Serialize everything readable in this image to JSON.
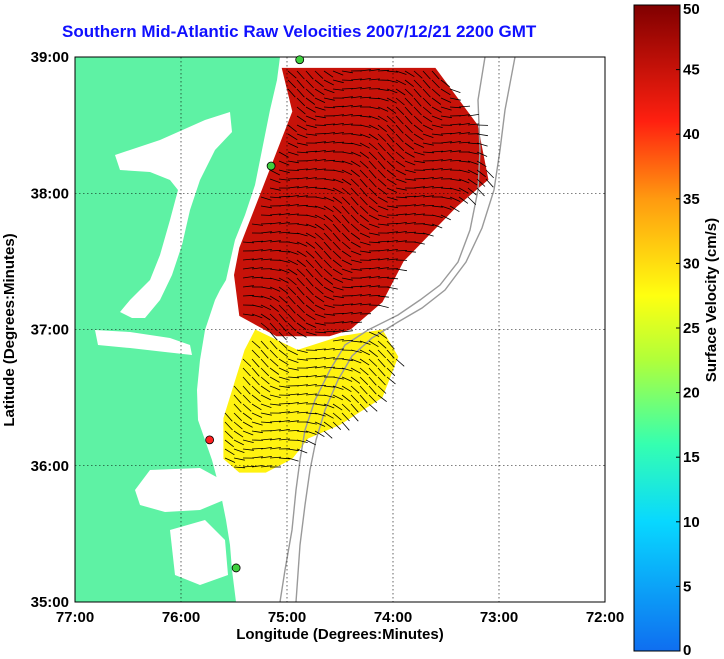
{
  "title": "Southern Mid-Atlantic Raw Velocities 2007/12/21 2200 GMT",
  "xlabel": "Longitude (Degrees:Minutes)",
  "ylabel": "Latitude (Degrees:Minutes)",
  "colorbar_label": "Surface Velocity (cm/s)",
  "x_ticks": [
    {
      "value": -77,
      "label": "77:00"
    },
    {
      "value": -76,
      "label": "76:00"
    },
    {
      "value": -75,
      "label": "75:00"
    },
    {
      "value": -74,
      "label": "74:00"
    },
    {
      "value": -73,
      "label": "73:00"
    },
    {
      "value": -72,
      "label": "72:00"
    }
  ],
  "y_ticks": [
    {
      "value": 35,
      "label": "35:00"
    },
    {
      "value": 36,
      "label": "36:00"
    },
    {
      "value": 37,
      "label": "37:00"
    },
    {
      "value": 38,
      "label": "38:00"
    },
    {
      "value": 39,
      "label": "39:00"
    }
  ],
  "colorbar_ticks": [
    {
      "value": 0,
      "label": "0"
    },
    {
      "value": 5,
      "label": "5"
    },
    {
      "value": 10,
      "label": "10"
    },
    {
      "value": 15,
      "label": "15"
    },
    {
      "value": 20,
      "label": "20"
    },
    {
      "value": 25,
      "label": "25"
    },
    {
      "value": 30,
      "label": "30"
    },
    {
      "value": 35,
      "label": "35"
    },
    {
      "value": 40,
      "label": "40"
    },
    {
      "value": 45,
      "label": "45"
    },
    {
      "value": 50,
      "label": "50"
    }
  ],
  "extent": {
    "lon": [
      -77,
      -72
    ],
    "lat": [
      35,
      39
    ]
  },
  "colorbar_range": [
    0,
    50
  ],
  "colors": {
    "land": "#5ef2a4",
    "ocean": "#ffffff",
    "title": "#1010ff",
    "bathymetry": "#9a9a9a",
    "arrows": "#000000",
    "grid": "#000000"
  },
  "stations": [
    {
      "lon": -74.88,
      "lat": 38.98,
      "color": "#3ecf3e"
    },
    {
      "lon": -75.15,
      "lat": 38.2,
      "color": "#3ecf3e"
    },
    {
      "lon": -75.73,
      "lat": 36.19,
      "color": "#ff2020"
    },
    {
      "lon": -75.48,
      "lat": 35.25,
      "color": "#3ecf3e"
    }
  ],
  "coverage_regions": [
    {
      "name": "northern",
      "speed": 45,
      "polygon": [
        [
          -75.05,
          38.92
        ],
        [
          -73.6,
          38.92
        ],
        [
          -73.2,
          38.5
        ],
        [
          -73.1,
          38.1
        ],
        [
          -73.4,
          37.9
        ],
        [
          -73.9,
          37.5
        ],
        [
          -74.1,
          37.2
        ],
        [
          -74.4,
          37.0
        ],
        [
          -74.6,
          36.95
        ],
        [
          -75.1,
          36.95
        ],
        [
          -75.45,
          37.1
        ],
        [
          -75.5,
          37.4
        ],
        [
          -75.45,
          37.6
        ],
        [
          -75.3,
          37.9
        ],
        [
          -75.1,
          38.3
        ],
        [
          -74.95,
          38.6
        ]
      ]
    },
    {
      "name": "southern",
      "speed": 28,
      "polygon": [
        [
          -75.3,
          37.0
        ],
        [
          -74.9,
          36.85
        ],
        [
          -74.5,
          36.95
        ],
        [
          -74.1,
          37.0
        ],
        [
          -73.95,
          36.8
        ],
        [
          -74.1,
          36.5
        ],
        [
          -74.3,
          36.4
        ],
        [
          -74.5,
          36.3
        ],
        [
          -74.8,
          36.2
        ],
        [
          -74.95,
          36.05
        ],
        [
          -75.2,
          35.95
        ],
        [
          -75.45,
          35.95
        ],
        [
          -75.6,
          36.05
        ],
        [
          -75.6,
          36.35
        ],
        [
          -75.5,
          36.6
        ],
        [
          -75.4,
          36.85
        ]
      ]
    }
  ]
}
